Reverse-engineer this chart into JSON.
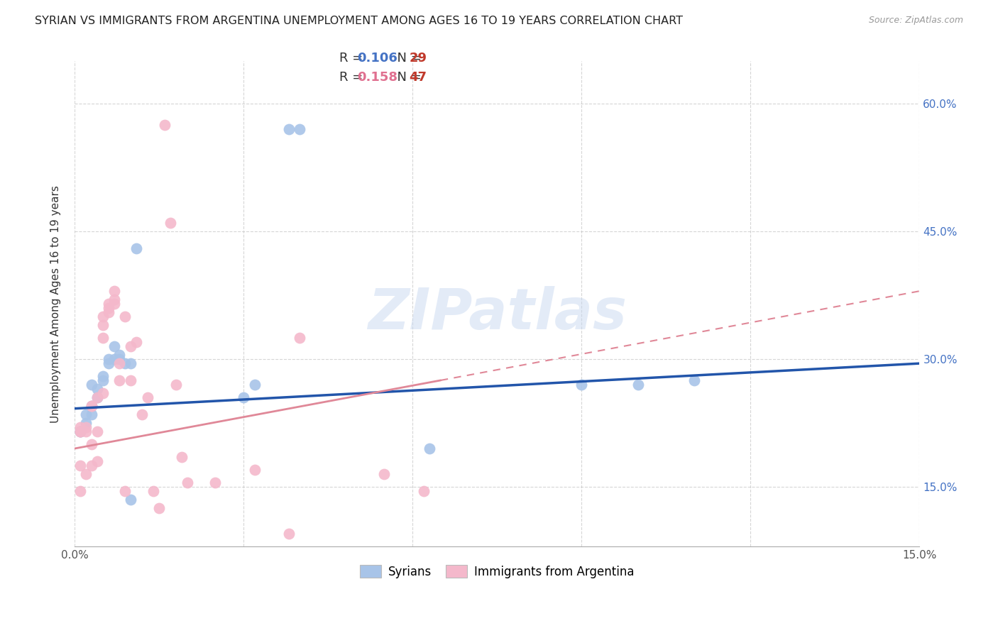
{
  "title": "SYRIAN VS IMMIGRANTS FROM ARGENTINA UNEMPLOYMENT AMONG AGES 16 TO 19 YEARS CORRELATION CHART",
  "source": "Source: ZipAtlas.com",
  "ylabel": "Unemployment Among Ages 16 to 19 years",
  "xlim": [
    0.0,
    0.15
  ],
  "ylim": [
    0.08,
    0.65
  ],
  "xticks": [
    0.0,
    0.03,
    0.06,
    0.09,
    0.12,
    0.15
  ],
  "yticks": [
    0.15,
    0.3,
    0.45,
    0.6
  ],
  "xticklabels": [
    "0.0%",
    "",
    "",
    "",
    "",
    "15.0%"
  ],
  "yticklabels_right": [
    "15.0%",
    "30.0%",
    "45.0%",
    "60.0%"
  ],
  "blue_label": "Syrians",
  "pink_label": "Immigrants from Argentina",
  "legend_r_blue": "0.106",
  "legend_n_blue": "29",
  "legend_r_pink": "0.158",
  "legend_n_pink": "47",
  "blue_color": "#a8c4e8",
  "pink_color": "#f4b8cb",
  "blue_line_color": "#2255aa",
  "pink_line_color": "#e08898",
  "watermark": "ZIPatlas",
  "blue_x": [
    0.001,
    0.001,
    0.002,
    0.002,
    0.003,
    0.003,
    0.003,
    0.004,
    0.004,
    0.005,
    0.005,
    0.006,
    0.006,
    0.007,
    0.007,
    0.008,
    0.008,
    0.009,
    0.01,
    0.01,
    0.011,
    0.03,
    0.032,
    0.038,
    0.04,
    0.063,
    0.09,
    0.1,
    0.11
  ],
  "blue_y": [
    0.215,
    0.215,
    0.225,
    0.235,
    0.235,
    0.245,
    0.27,
    0.265,
    0.255,
    0.275,
    0.28,
    0.295,
    0.3,
    0.3,
    0.315,
    0.305,
    0.3,
    0.295,
    0.295,
    0.135,
    0.43,
    0.255,
    0.27,
    0.57,
    0.57,
    0.195,
    0.27,
    0.27,
    0.275
  ],
  "pink_x": [
    0.001,
    0.001,
    0.001,
    0.001,
    0.001,
    0.002,
    0.002,
    0.002,
    0.003,
    0.003,
    0.003,
    0.003,
    0.004,
    0.004,
    0.004,
    0.005,
    0.005,
    0.005,
    0.005,
    0.006,
    0.006,
    0.006,
    0.007,
    0.007,
    0.007,
    0.008,
    0.008,
    0.009,
    0.009,
    0.01,
    0.01,
    0.011,
    0.012,
    0.013,
    0.014,
    0.015,
    0.016,
    0.017,
    0.018,
    0.019,
    0.02,
    0.025,
    0.032,
    0.038,
    0.04,
    0.055,
    0.062
  ],
  "pink_y": [
    0.215,
    0.22,
    0.215,
    0.175,
    0.145,
    0.215,
    0.22,
    0.165,
    0.245,
    0.245,
    0.2,
    0.175,
    0.255,
    0.215,
    0.18,
    0.34,
    0.325,
    0.35,
    0.26,
    0.365,
    0.36,
    0.355,
    0.37,
    0.365,
    0.38,
    0.275,
    0.295,
    0.35,
    0.145,
    0.275,
    0.315,
    0.32,
    0.235,
    0.255,
    0.145,
    0.125,
    0.575,
    0.46,
    0.27,
    0.185,
    0.155,
    0.155,
    0.17,
    0.095,
    0.325,
    0.165,
    0.145
  ]
}
